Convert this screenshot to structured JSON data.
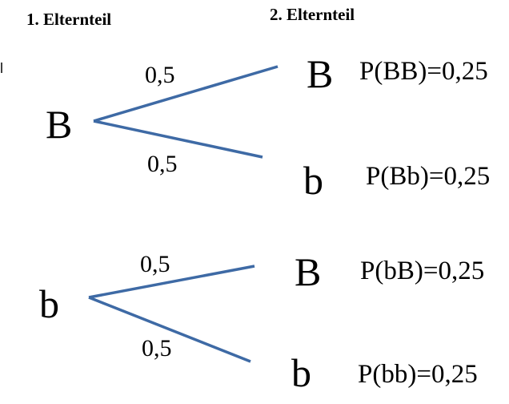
{
  "headers": [
    "1. Elternteil",
    "2. Elternteil"
  ],
  "trees": [
    {
      "root": "B",
      "branches": [
        {
          "probability": "0,5",
          "child": "B",
          "result": "P(BB)=0,25"
        },
        {
          "probability": "0,5",
          "child": "b",
          "result": "P(Bb)=0,25"
        }
      ]
    },
    {
      "root": "b",
      "branches": [
        {
          "probability": "0,5",
          "child": "B",
          "result": "P(bB)=0,25"
        },
        {
          "probability": "0,5",
          "child": "b",
          "result": "P(bb)=0,25"
        }
      ]
    }
  ]
}
